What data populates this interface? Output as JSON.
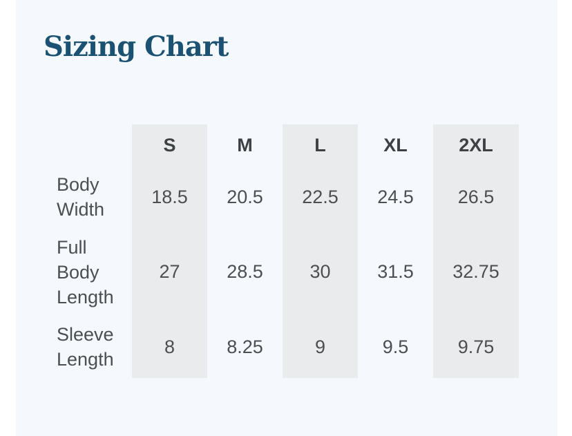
{
  "page": {
    "title": "Sizing Chart"
  },
  "colors": {
    "title_text": "#1b5173",
    "panel_bg": "#f5f8fc",
    "stripe_bg": "#e9ebec",
    "header_text": "#3e4144",
    "cell_text": "#4c4e50",
    "outer_bg": "#ffffff"
  },
  "chart_data": {
    "type": "table",
    "title": "Sizing Chart",
    "columns": [
      "S",
      "M",
      "L",
      "XL",
      "2XL"
    ],
    "row_labels": [
      "Body Width",
      "Full Body Length",
      "Sleeve Length"
    ],
    "rows": [
      {
        "label": "Body Width",
        "values": [
          "18.5",
          "20.5",
          "22.5",
          "24.5",
          "26.5"
        ]
      },
      {
        "label": "Full Body Length",
        "values": [
          "27",
          "28.5",
          "30",
          "31.5",
          "32.75"
        ]
      },
      {
        "label": "Sleeve Length",
        "values": [
          "8",
          "8.25",
          "9",
          "9.5",
          "9.75"
        ]
      }
    ],
    "striped_columns": [
      "S",
      "L",
      "2XL"
    ],
    "legend_position": "none",
    "grid": false
  }
}
